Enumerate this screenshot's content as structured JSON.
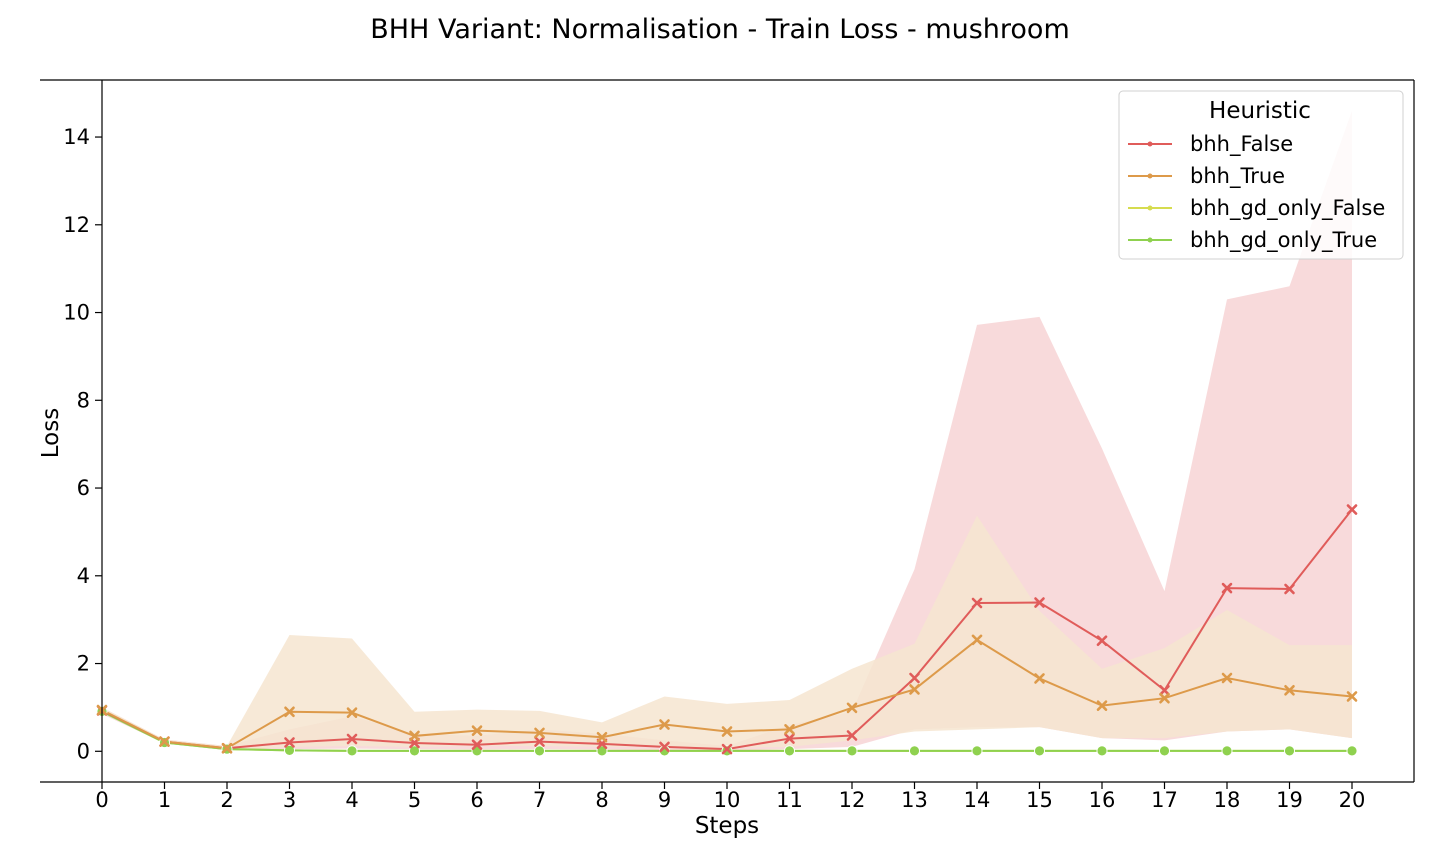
{
  "chart_data": {
    "type": "line",
    "title": "BHH Variant: Normalisation - Train Loss - mushroom",
    "xlabel": "Steps",
    "ylabel": "Loss",
    "x": [
      0,
      1,
      2,
      3,
      4,
      5,
      6,
      7,
      8,
      9,
      10,
      11,
      12,
      13,
      14,
      15,
      16,
      17,
      18,
      19,
      20
    ],
    "xlim": [
      0,
      20
    ],
    "ylim": [
      -0.7,
      15.3
    ],
    "yticks": [
      0,
      2,
      4,
      6,
      8,
      10,
      12,
      14
    ],
    "grid": false,
    "legend": {
      "title": "Heuristic",
      "placement": "top-right"
    },
    "series": [
      {
        "name": "bhh_False",
        "color": "#e05c5a",
        "band_color": "#f7d4d5",
        "marker": "x",
        "values": [
          0.93,
          0.22,
          0.07,
          0.2,
          0.28,
          0.19,
          0.15,
          0.22,
          0.17,
          0.1,
          0.05,
          0.29,
          0.36,
          1.67,
          3.38,
          3.39,
          2.52,
          1.39,
          3.72,
          3.7,
          5.51
        ],
        "band_low": [
          0.85,
          0.18,
          0.03,
          0.05,
          0.06,
          0.05,
          0.04,
          0.05,
          0.04,
          0.02,
          0.01,
          0.05,
          0.1,
          0.5,
          0.55,
          0.55,
          0.3,
          0.25,
          0.45,
          0.5,
          0.3
        ],
        "band_high": [
          1.0,
          0.27,
          0.12,
          0.5,
          0.8,
          0.4,
          0.35,
          0.5,
          0.4,
          0.25,
          0.12,
          0.6,
          0.9,
          4.15,
          9.72,
          9.9,
          6.9,
          3.65,
          10.3,
          10.6,
          14.6
        ]
      },
      {
        "name": "bhh_True",
        "color": "#dd9a4a",
        "band_color": "#f6e5d0",
        "marker": "x",
        "values": [
          0.94,
          0.22,
          0.07,
          0.9,
          0.88,
          0.35,
          0.47,
          0.42,
          0.32,
          0.61,
          0.45,
          0.5,
          0.99,
          1.41,
          2.54,
          1.66,
          1.04,
          1.21,
          1.67,
          1.39,
          1.25
        ],
        "band_low": [
          0.88,
          0.18,
          0.03,
          0.1,
          0.12,
          0.1,
          0.12,
          0.12,
          0.1,
          0.1,
          0.08,
          0.1,
          0.25,
          0.45,
          0.5,
          0.55,
          0.3,
          0.3,
          0.45,
          0.5,
          0.3
        ],
        "band_high": [
          1.0,
          0.27,
          0.12,
          2.65,
          2.57,
          0.9,
          0.95,
          0.92,
          0.66,
          1.25,
          1.08,
          1.17,
          1.88,
          2.45,
          5.37,
          3.2,
          1.88,
          2.35,
          3.22,
          2.42,
          2.42
        ]
      },
      {
        "name": "bhh_gd_only_False",
        "color": "#d6dc4f",
        "band_color": "#f2f4c8",
        "marker": "circle",
        "values": [
          0.91,
          0.2,
          0.05,
          0.02,
          0.01,
          0.01,
          0.01,
          0.01,
          0.01,
          0.01,
          0.01,
          0.01,
          0.01,
          0.01,
          0.01,
          0.01,
          0.01,
          0.01,
          0.01,
          0.01,
          0.01
        ],
        "band_low": [
          0.88,
          0.18,
          0.04,
          0.01,
          0.0,
          0.0,
          0.0,
          0.0,
          0.0,
          0.0,
          0.0,
          0.0,
          0.0,
          0.0,
          0.0,
          0.0,
          0.0,
          0.0,
          0.0,
          0.0,
          0.0
        ],
        "band_high": [
          0.95,
          0.23,
          0.07,
          0.04,
          0.03,
          0.03,
          0.03,
          0.03,
          0.03,
          0.03,
          0.03,
          0.03,
          0.03,
          0.03,
          0.03,
          0.03,
          0.03,
          0.03,
          0.03,
          0.03,
          0.03
        ]
      },
      {
        "name": "bhh_gd_only_True",
        "color": "#8fd14f",
        "band_color": "#dcf2c8",
        "marker": "circle",
        "values": [
          0.91,
          0.2,
          0.05,
          0.02,
          0.01,
          0.01,
          0.01,
          0.01,
          0.01,
          0.01,
          0.01,
          0.01,
          0.01,
          0.01,
          0.01,
          0.01,
          0.01,
          0.01,
          0.01,
          0.01,
          0.01
        ],
        "band_low": [
          0.88,
          0.18,
          0.04,
          0.01,
          0.0,
          0.0,
          0.0,
          0.0,
          0.0,
          0.0,
          0.0,
          0.0,
          0.0,
          0.0,
          0.0,
          0.0,
          0.0,
          0.0,
          0.0,
          0.0,
          0.0
        ],
        "band_high": [
          0.95,
          0.23,
          0.07,
          0.04,
          0.03,
          0.03,
          0.03,
          0.03,
          0.03,
          0.03,
          0.03,
          0.03,
          0.03,
          0.03,
          0.03,
          0.03,
          0.03,
          0.03,
          0.03,
          0.03,
          0.03
        ]
      }
    ]
  }
}
